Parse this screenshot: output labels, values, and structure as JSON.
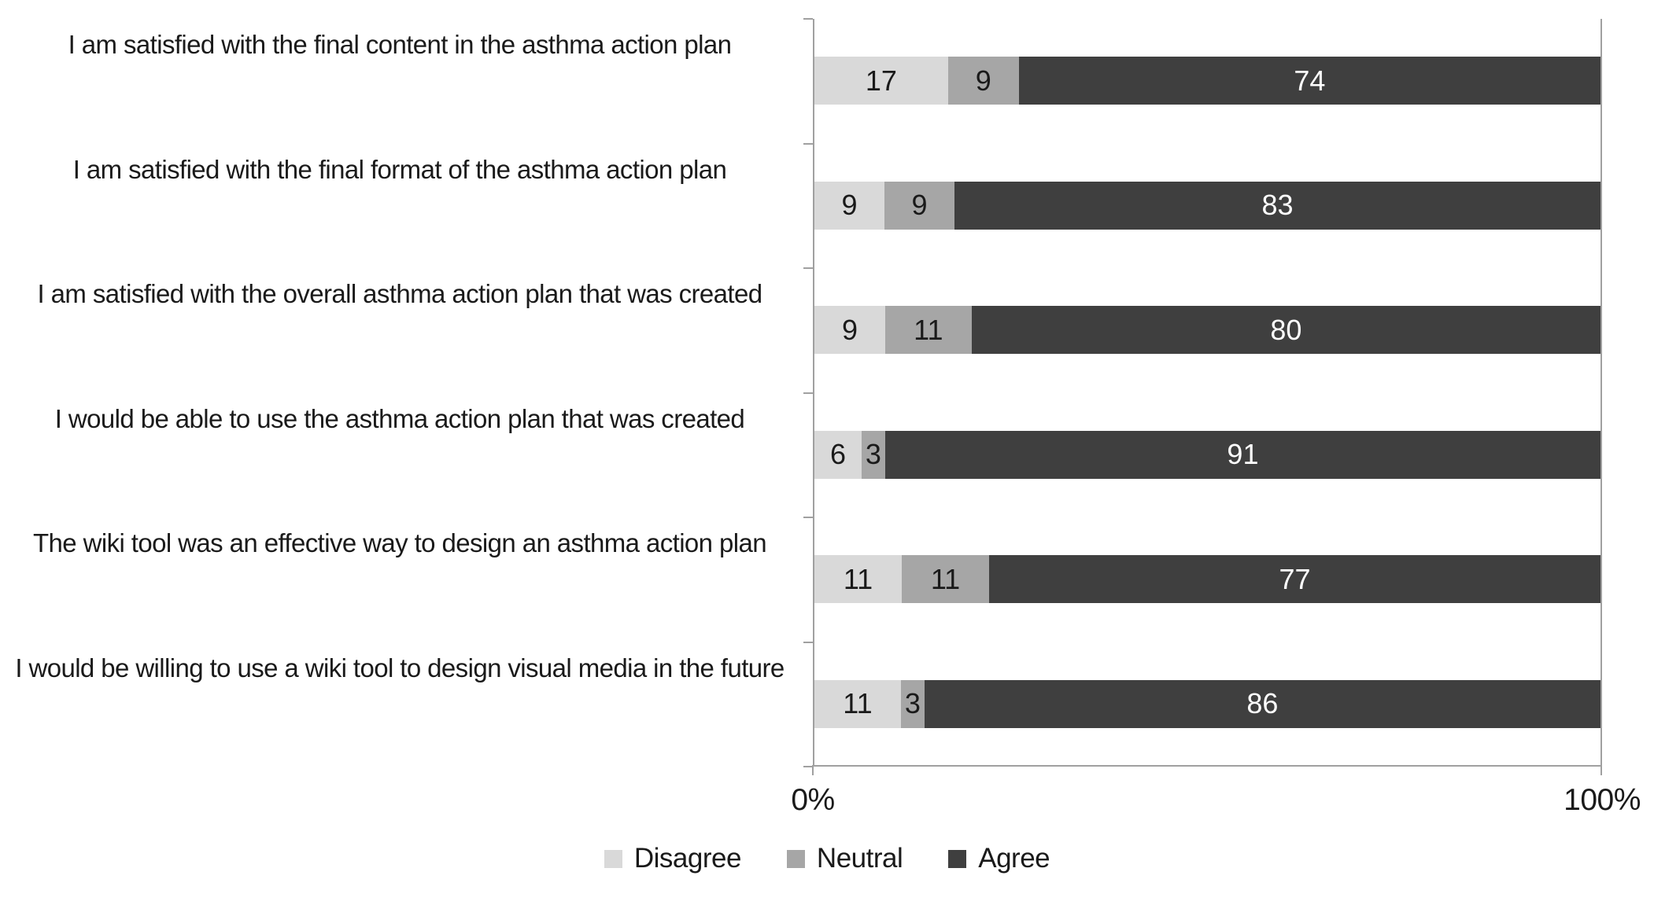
{
  "chart_data": {
    "type": "bar",
    "orientation": "horizontal",
    "stacked": "100%",
    "title": "",
    "xlabel": "",
    "ylabel": "",
    "x_axis": {
      "min_label": "0%",
      "max_label": "100%",
      "range": [
        0,
        100
      ],
      "grid": false
    },
    "categories": [
      "I am satisfied with the final content in the asthma action plan",
      "I am satisfied with the final format of the asthma action plan",
      "I am satisfied with the overall asthma action plan that was created",
      "I would be able to use the asthma action plan that was created",
      "The wiki tool was an effective way to design an asthma action plan",
      "I would be willing to use a wiki tool to design visual media in the future"
    ],
    "series": [
      {
        "name": "Disagree",
        "color": "#d9d9d9",
        "label_color": "#1a1a1a",
        "values": [
          17,
          9,
          9,
          6,
          11,
          11
        ]
      },
      {
        "name": "Neutral",
        "color": "#a6a6a6",
        "label_color": "#1a1a1a",
        "values": [
          9,
          9,
          11,
          3,
          11,
          3
        ]
      },
      {
        "name": "Agree",
        "color": "#3f3f3f",
        "label_color": "#ffffff",
        "values": [
          74,
          83,
          80,
          91,
          77,
          86
        ]
      }
    ],
    "legend": {
      "position": "bottom",
      "entries": [
        "Disagree",
        "Neutral",
        "Agree"
      ]
    },
    "colors": {
      "axis_line": "#a0a0a0",
      "background": "#ffffff",
      "text": "#1a1a1a"
    }
  }
}
